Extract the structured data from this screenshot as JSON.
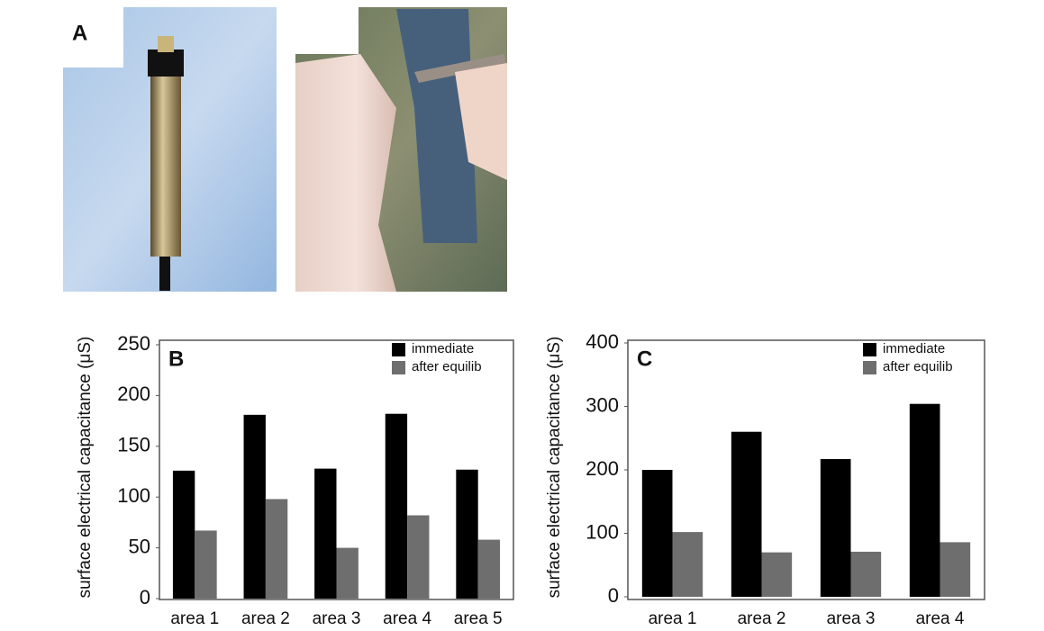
{
  "photo_panel": {
    "label": "A"
  },
  "chart_data": [
    {
      "type": "bar",
      "panel": "B",
      "ylabel": "surface electrical capacitance (μS)",
      "categories": [
        "area 1",
        "area 2",
        "area 3",
        "area 4",
        "area 5"
      ],
      "series": [
        {
          "name": "immediate",
          "color": "#000000",
          "values": [
            126,
            181,
            128,
            182,
            127
          ]
        },
        {
          "name": "after equilib",
          "color": "#6e6e6e",
          "values": [
            67,
            98,
            50,
            82,
            58
          ]
        }
      ],
      "ylim": [
        0,
        250
      ],
      "yticks": [
        0,
        50,
        100,
        150,
        200,
        250
      ],
      "grid": false,
      "legend": "upper right"
    },
    {
      "type": "bar",
      "panel": "C",
      "ylabel": "surface electrical capacitance (μS)",
      "categories": [
        "area 1",
        "area 2",
        "area 3",
        "area 4"
      ],
      "series": [
        {
          "name": "immediate",
          "color": "#000000",
          "values": [
            200,
            260,
            217,
            304
          ]
        },
        {
          "name": "after equilib",
          "color": "#6e6e6e",
          "values": [
            102,
            70,
            71,
            86
          ]
        }
      ],
      "ylim": [
        0,
        400
      ],
      "yticks": [
        0,
        100,
        200,
        300,
        400
      ],
      "grid": false,
      "legend": "upper right"
    }
  ]
}
